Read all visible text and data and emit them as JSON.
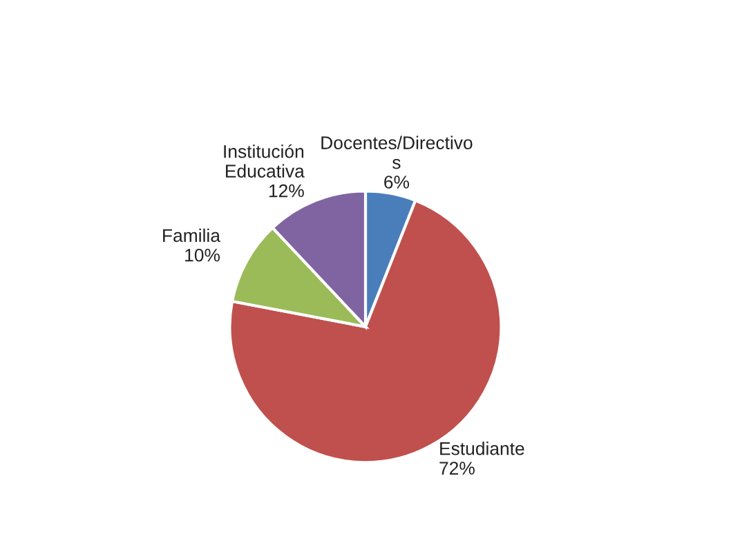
{
  "chart_data": {
    "type": "pie",
    "categories": [
      "Docentes/Directivo\ns",
      "Estudiante",
      "Familia",
      "Institución\nEducativa"
    ],
    "values": [
      6,
      72,
      10,
      12
    ],
    "value_labels": [
      "6%",
      "72%",
      "10%",
      "12%"
    ],
    "colors": [
      "#4a7ebb",
      "#c0504d",
      "#9bbb59",
      "#8064a2"
    ],
    "legend": false
  }
}
